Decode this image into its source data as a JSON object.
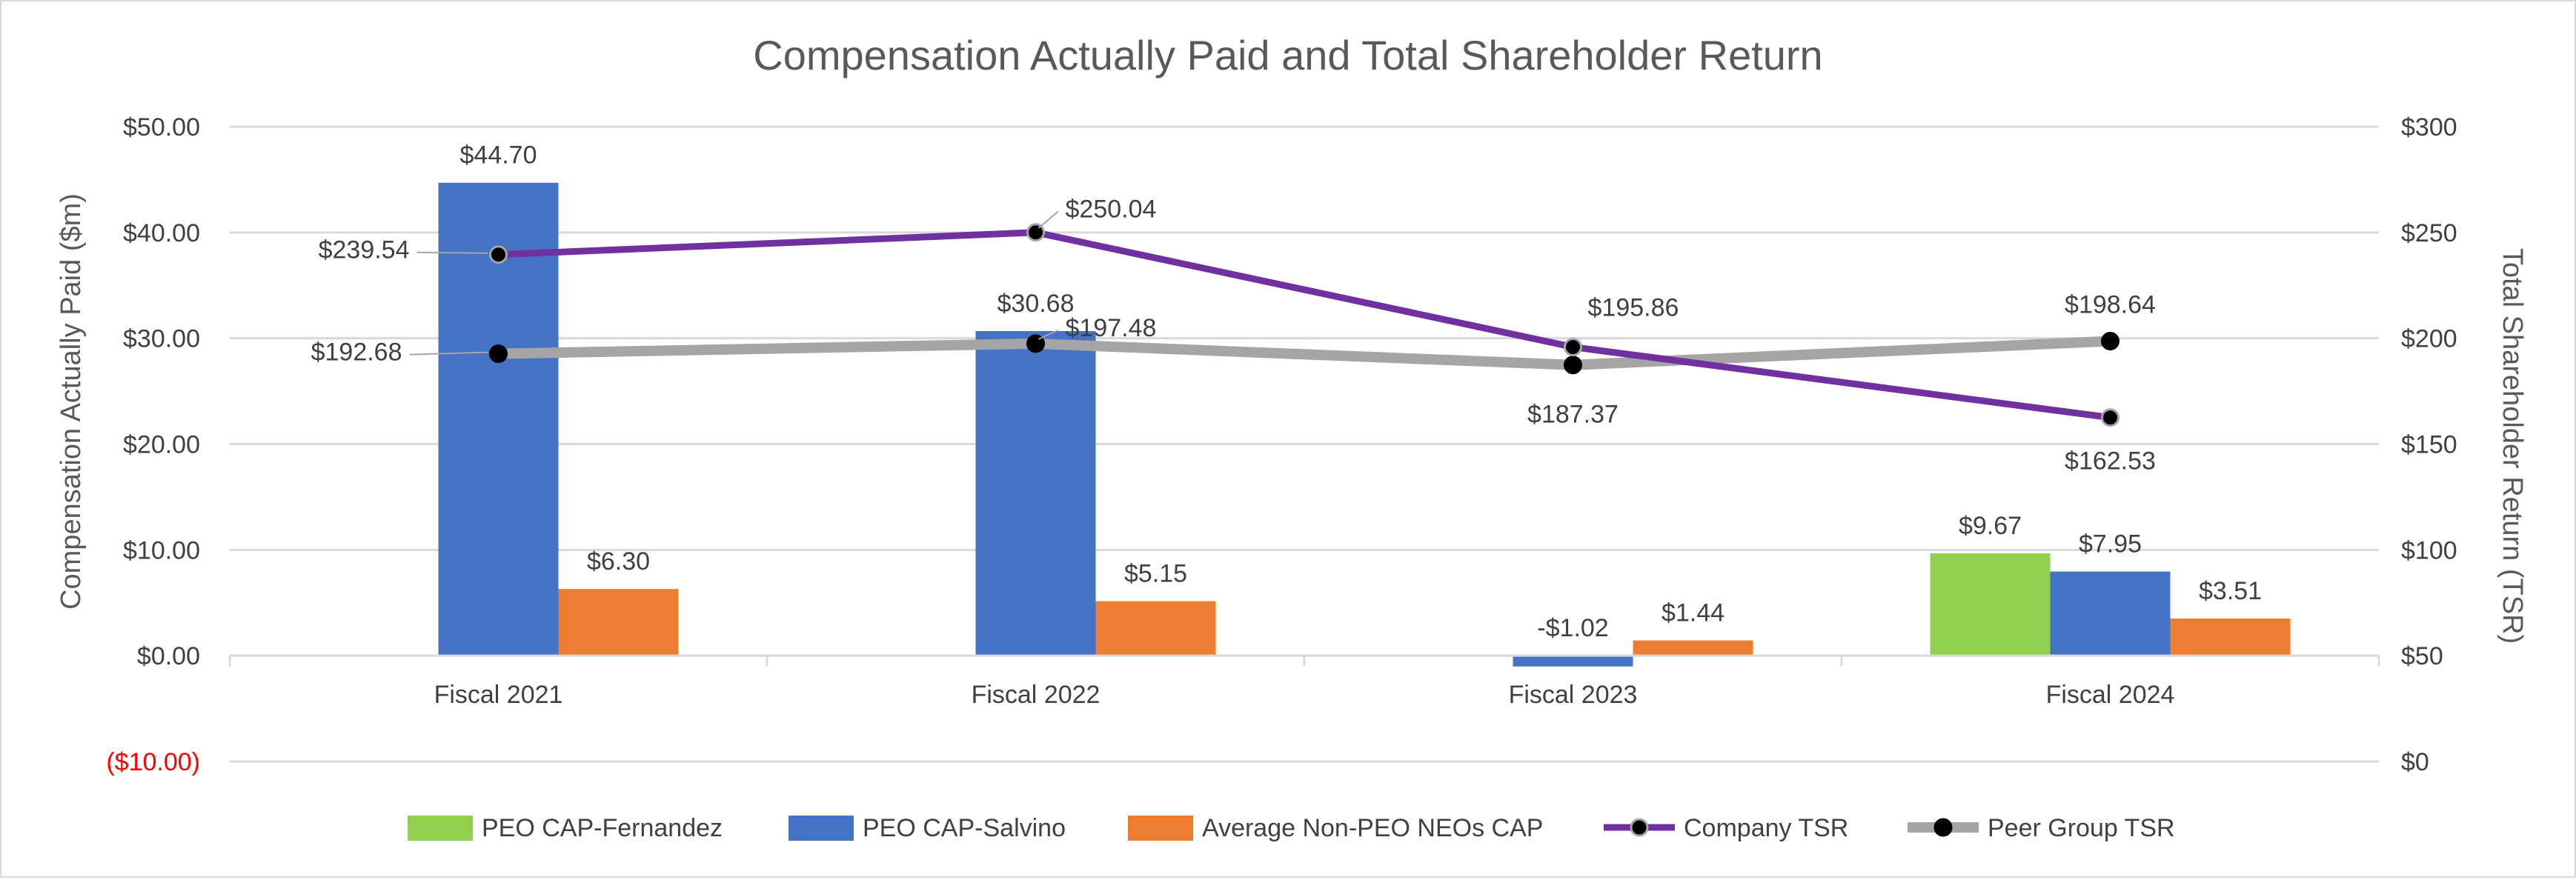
{
  "chart_data": {
    "type": "bar+line",
    "title": "Compensation Actually Paid and Total Shareholder Return",
    "ylabel": "Compensation Actually Paid ($m)",
    "y2label": "Total Shareholder Return (TSR)",
    "ylim": [
      -10,
      50
    ],
    "y2lim": [
      0,
      300
    ],
    "yticks": [
      "($10.00)",
      "$0.00",
      "$10.00",
      "$20.00",
      "$30.00",
      "$40.00",
      "$50.00"
    ],
    "ytick_values": [
      -10,
      0,
      10,
      20,
      30,
      40,
      50
    ],
    "y2ticks": [
      "$0",
      "$50",
      "$100",
      "$150",
      "$200",
      "$250",
      "$300"
    ],
    "y2tick_values": [
      0,
      50,
      100,
      150,
      200,
      250,
      300
    ],
    "negative_tick_color": "#ff0000",
    "categories": [
      "Fiscal 2021",
      "Fiscal 2022",
      "Fiscal 2023",
      "Fiscal 2024"
    ],
    "bar_series": [
      {
        "name": "PEO CAP-Fernandez",
        "color": "#92d050",
        "values": [
          null,
          null,
          null,
          9.67
        ],
        "labels": [
          null,
          null,
          null,
          "$9.67"
        ]
      },
      {
        "name": "PEO CAP-Salvino",
        "color": "#4472c4",
        "values": [
          44.7,
          30.68,
          -1.02,
          7.95
        ],
        "labels": [
          "$44.70",
          "$30.68",
          "-$1.02",
          "$7.95"
        ]
      },
      {
        "name": "Average Non-PEO NEOs CAP",
        "color": "#ed7d31",
        "values": [
          6.3,
          5.15,
          1.44,
          3.51
        ],
        "labels": [
          "$6.30",
          "$5.15",
          "$1.44",
          "$3.51"
        ]
      }
    ],
    "line_series": [
      {
        "name": "Company TSR",
        "color": "#7030a0",
        "axis": "right",
        "values": [
          239.54,
          250.04,
          195.86,
          162.53
        ],
        "labels": [
          "$239.54",
          "$250.04",
          "$195.86",
          "$162.53"
        ]
      },
      {
        "name": "Peer Group TSR",
        "color": "#a5a5a5",
        "axis": "right",
        "values": [
          192.68,
          197.48,
          187.37,
          198.64
        ],
        "labels": [
          "$192.68",
          "$197.48",
          "$187.37",
          "$198.64"
        ]
      }
    ],
    "grid": true,
    "legend": "bottom"
  }
}
